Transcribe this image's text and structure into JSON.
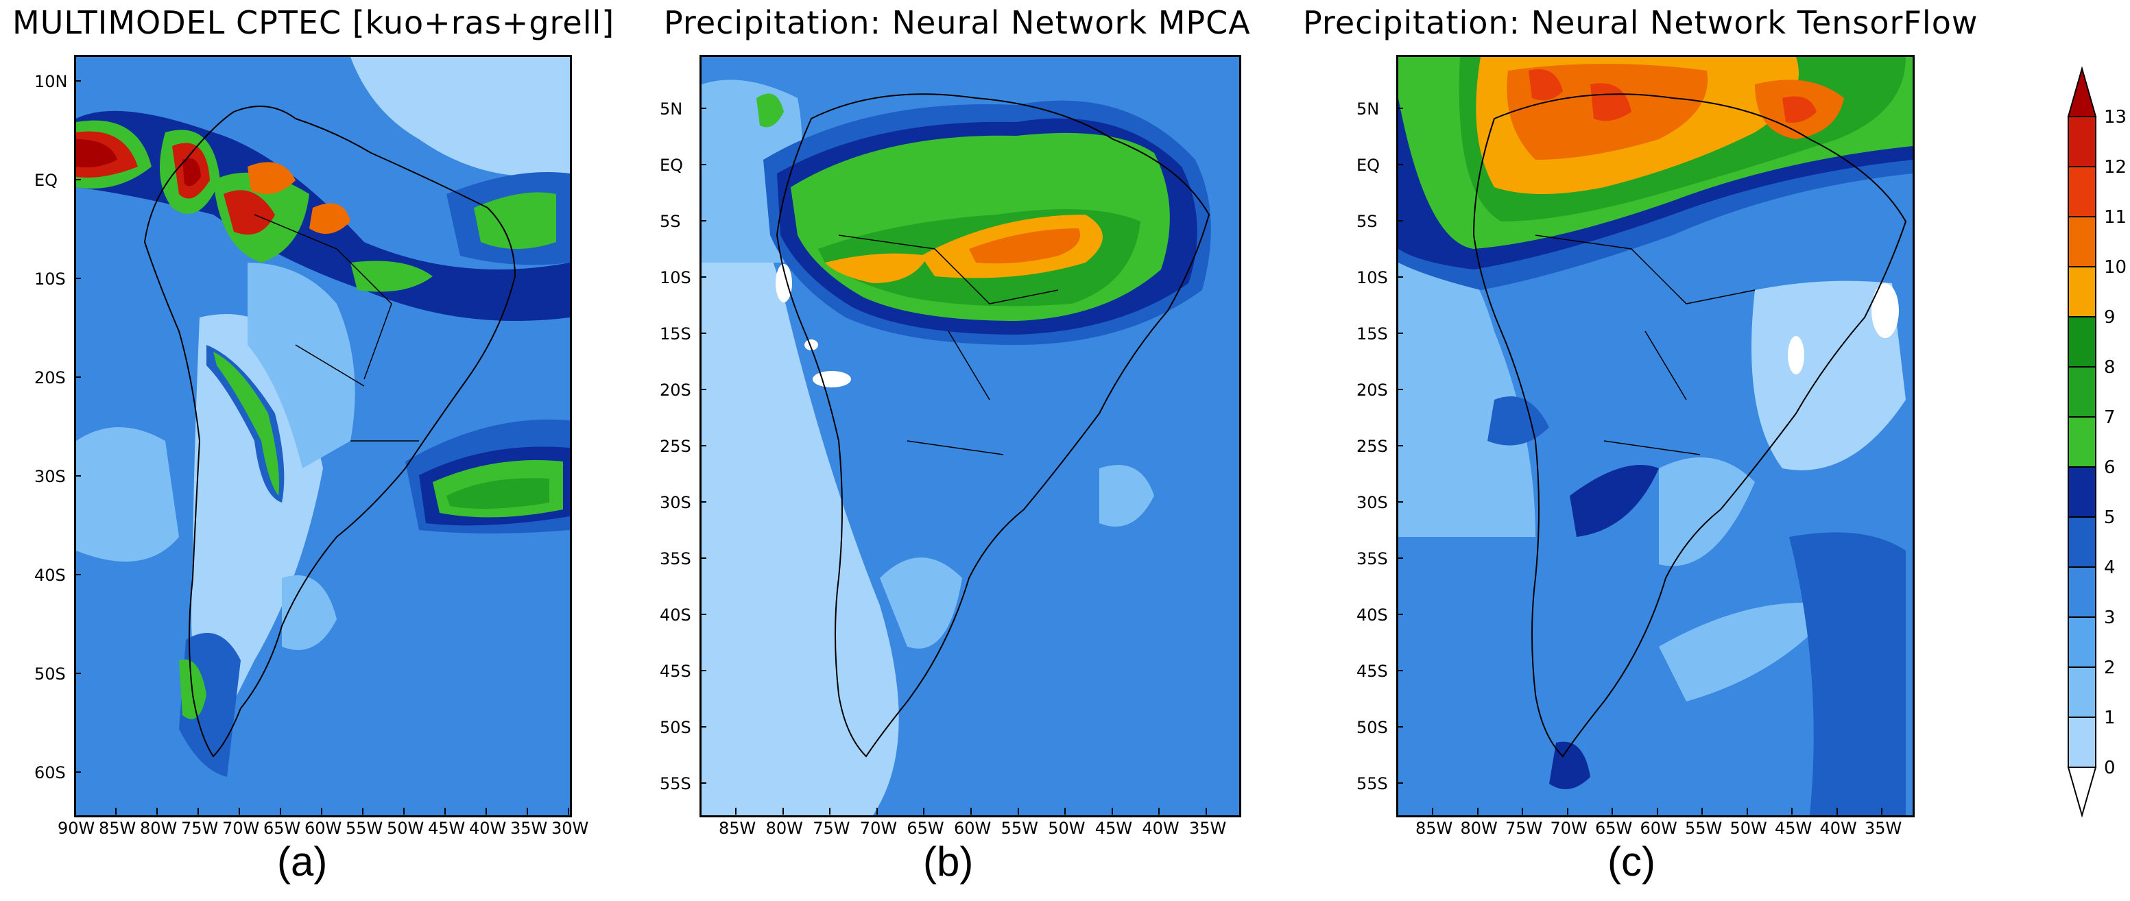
{
  "panels": [
    {
      "id": "a",
      "title": "MULTIMODEL CPTEC [kuo+ras+grell]",
      "label": "(a)",
      "lon_ticks": [
        "90W",
        "85W",
        "80W",
        "75W",
        "70W",
        "65W",
        "60W",
        "55W",
        "50W",
        "45W",
        "40W",
        "35W",
        "30W"
      ],
      "lat_ticks": [
        "10N",
        "EQ",
        "10S",
        "20S",
        "30S",
        "40S",
        "50S",
        "60S"
      ]
    },
    {
      "id": "b",
      "title": "Precipitation: Neural Network MPCA",
      "label": "(b)",
      "lon_ticks": [
        "85W",
        "80W",
        "75W",
        "70W",
        "65W",
        "60W",
        "55W",
        "50W",
        "45W",
        "40W",
        "35W"
      ],
      "lat_ticks": [
        "5N",
        "EQ",
        "5S",
        "10S",
        "15S",
        "20S",
        "25S",
        "30S",
        "35S",
        "40S",
        "45S",
        "50S",
        "55S"
      ]
    },
    {
      "id": "c",
      "title": "Precipitation: Neural Network TensorFlow",
      "label": "(c)",
      "lon_ticks": [
        "85W",
        "80W",
        "75W",
        "70W",
        "65W",
        "60W",
        "55W",
        "50W",
        "45W",
        "40W",
        "35W"
      ],
      "lat_ticks": [
        "5N",
        "EQ",
        "5S",
        "10S",
        "15S",
        "20S",
        "25S",
        "30S",
        "35S",
        "40S",
        "45S",
        "50S",
        "55S"
      ]
    }
  ],
  "colorbar": {
    "levels": [
      "0",
      "1",
      "2",
      "3",
      "4",
      "5",
      "6",
      "7",
      "8",
      "9",
      "10",
      "11",
      "12",
      "13"
    ],
    "colors": [
      "#a6d4fa",
      "#7dbff5",
      "#57a6ee",
      "#3a88e0",
      "#1e5fc6",
      "#0c2c9c",
      "#3bbf2e",
      "#22a323",
      "#139118",
      "#f7a400",
      "#ef6c00",
      "#e83d0b",
      "#cc1a0b",
      "#a80000"
    ]
  },
  "map_colors": {
    "c0": "#a6d4fa",
    "c1": "#7dbff5",
    "c2": "#57a6ee",
    "c3": "#3a88e0",
    "c4": "#1e5fc6",
    "c5": "#0c2c9c",
    "c6": "#3bbf2e",
    "c7": "#22a323",
    "c8": "#139118",
    "c9": "#f7a400",
    "c10": "#ef6c00",
    "c11": "#e83d0b",
    "c12": "#cc1a0b",
    "c13": "#a80000"
  }
}
